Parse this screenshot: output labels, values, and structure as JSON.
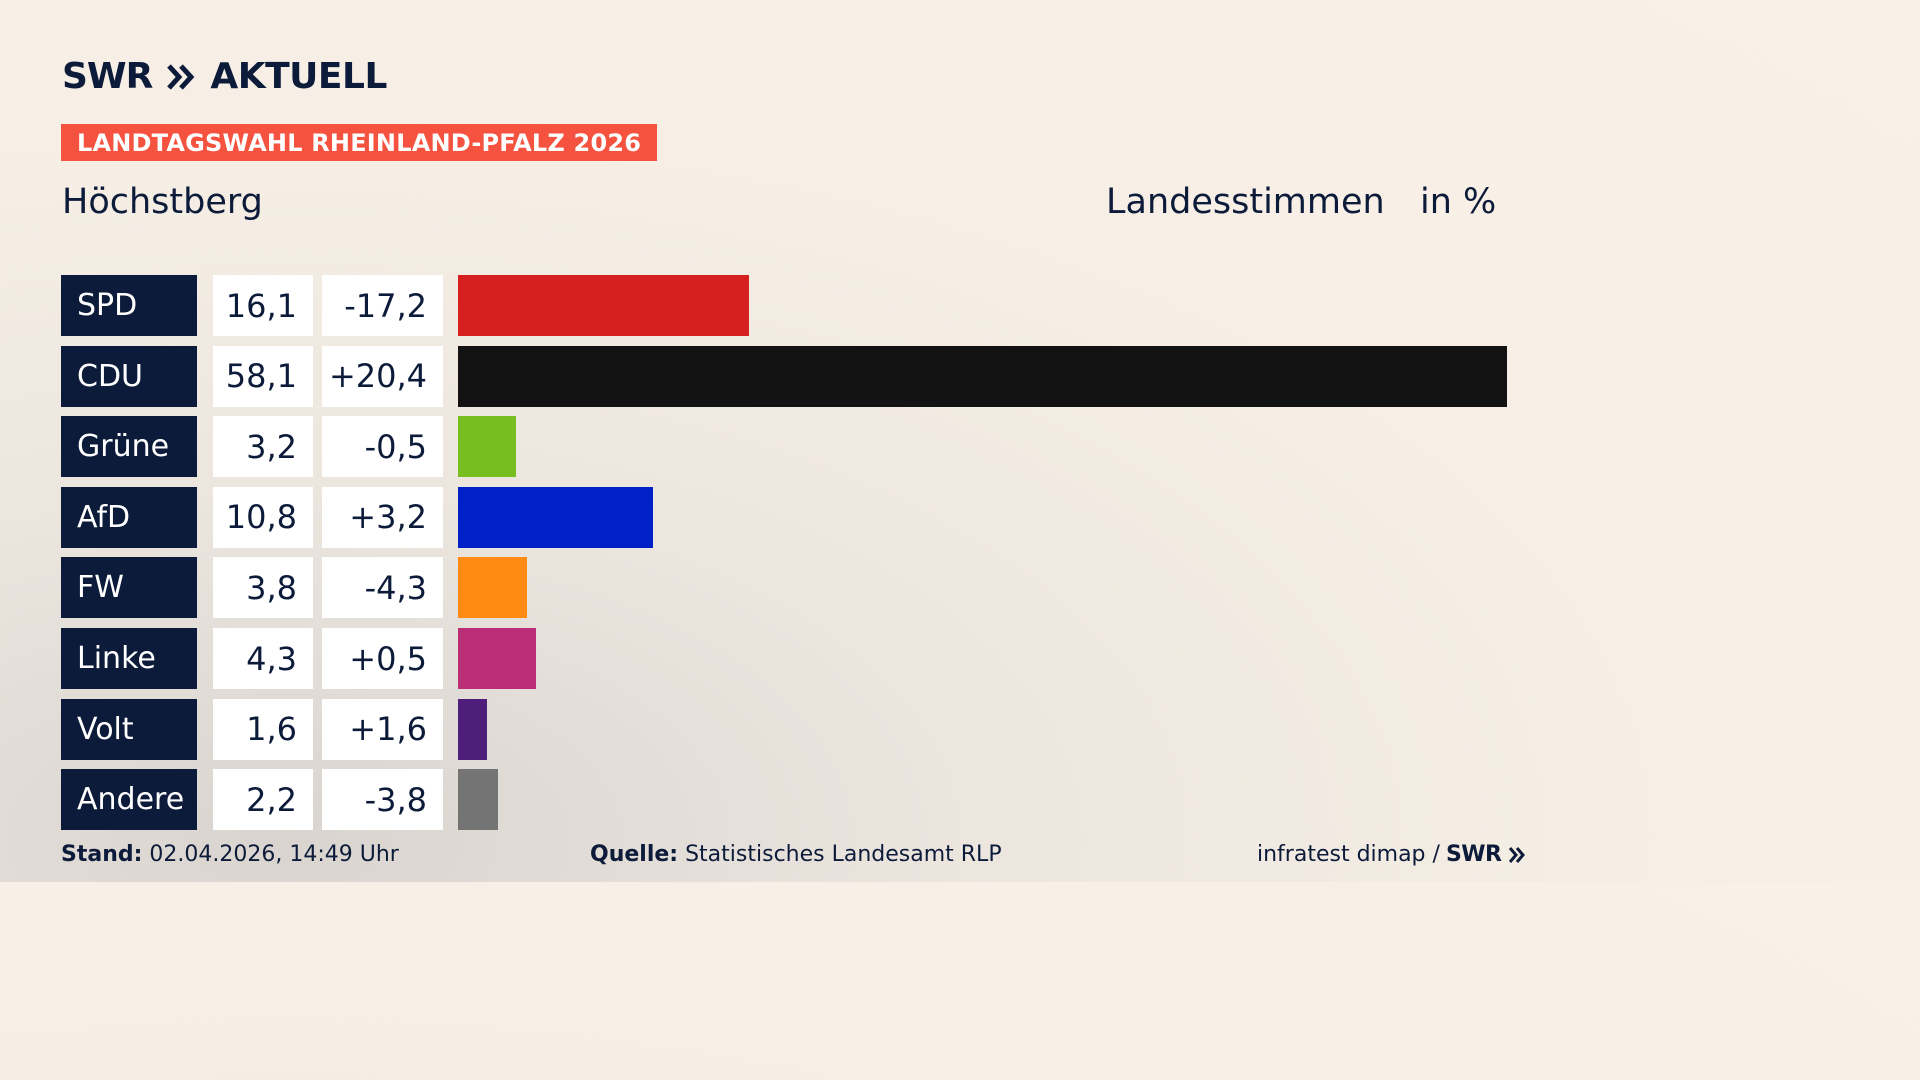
{
  "header": {
    "brand": "SWR",
    "brand_sub": "AKTUELL",
    "banner": "LANDTAGSWAHL RHEINLAND-PFALZ 2026",
    "location": "Höchstberg",
    "measure": "Landesstimmen",
    "unit": "in %"
  },
  "colors": {
    "navy": "#0d1b3a",
    "banner": "#f5523f"
  },
  "chart_data": {
    "type": "bar",
    "categories": [
      "SPD",
      "CDU",
      "Grüne",
      "AfD",
      "FW",
      "Linke",
      "Volt",
      "Andere"
    ],
    "values": [
      16.1,
      58.1,
      3.2,
      10.8,
      3.8,
      4.3,
      1.6,
      2.2
    ],
    "value_labels": [
      "16,1",
      "58,1",
      "3,2",
      "10,8",
      "3,8",
      "4,3",
      "1,6",
      "2,2"
    ],
    "diff_labels": [
      "-17,2",
      "+20,4",
      "-0,5",
      "+3,2",
      "-4,3",
      "+0,5",
      "+1,6",
      "-3,8"
    ],
    "bar_colors": [
      "#d61f1f",
      "#121212",
      "#78be20",
      "#0021c8",
      "#ff8b14",
      "#bb2d77",
      "#4f1e7a",
      "#747474"
    ],
    "orientation": "horizontal",
    "xlim": [
      0,
      58.1
    ],
    "grid": false
  },
  "footer": {
    "stand_label": "Stand:",
    "stand_value": "02.04.2026, 14:49 Uhr",
    "source_label": "Quelle:",
    "source_value": "Statistisches Landesamt RLP",
    "credit": "infratest dimap /",
    "credit_brand": "SWR"
  }
}
